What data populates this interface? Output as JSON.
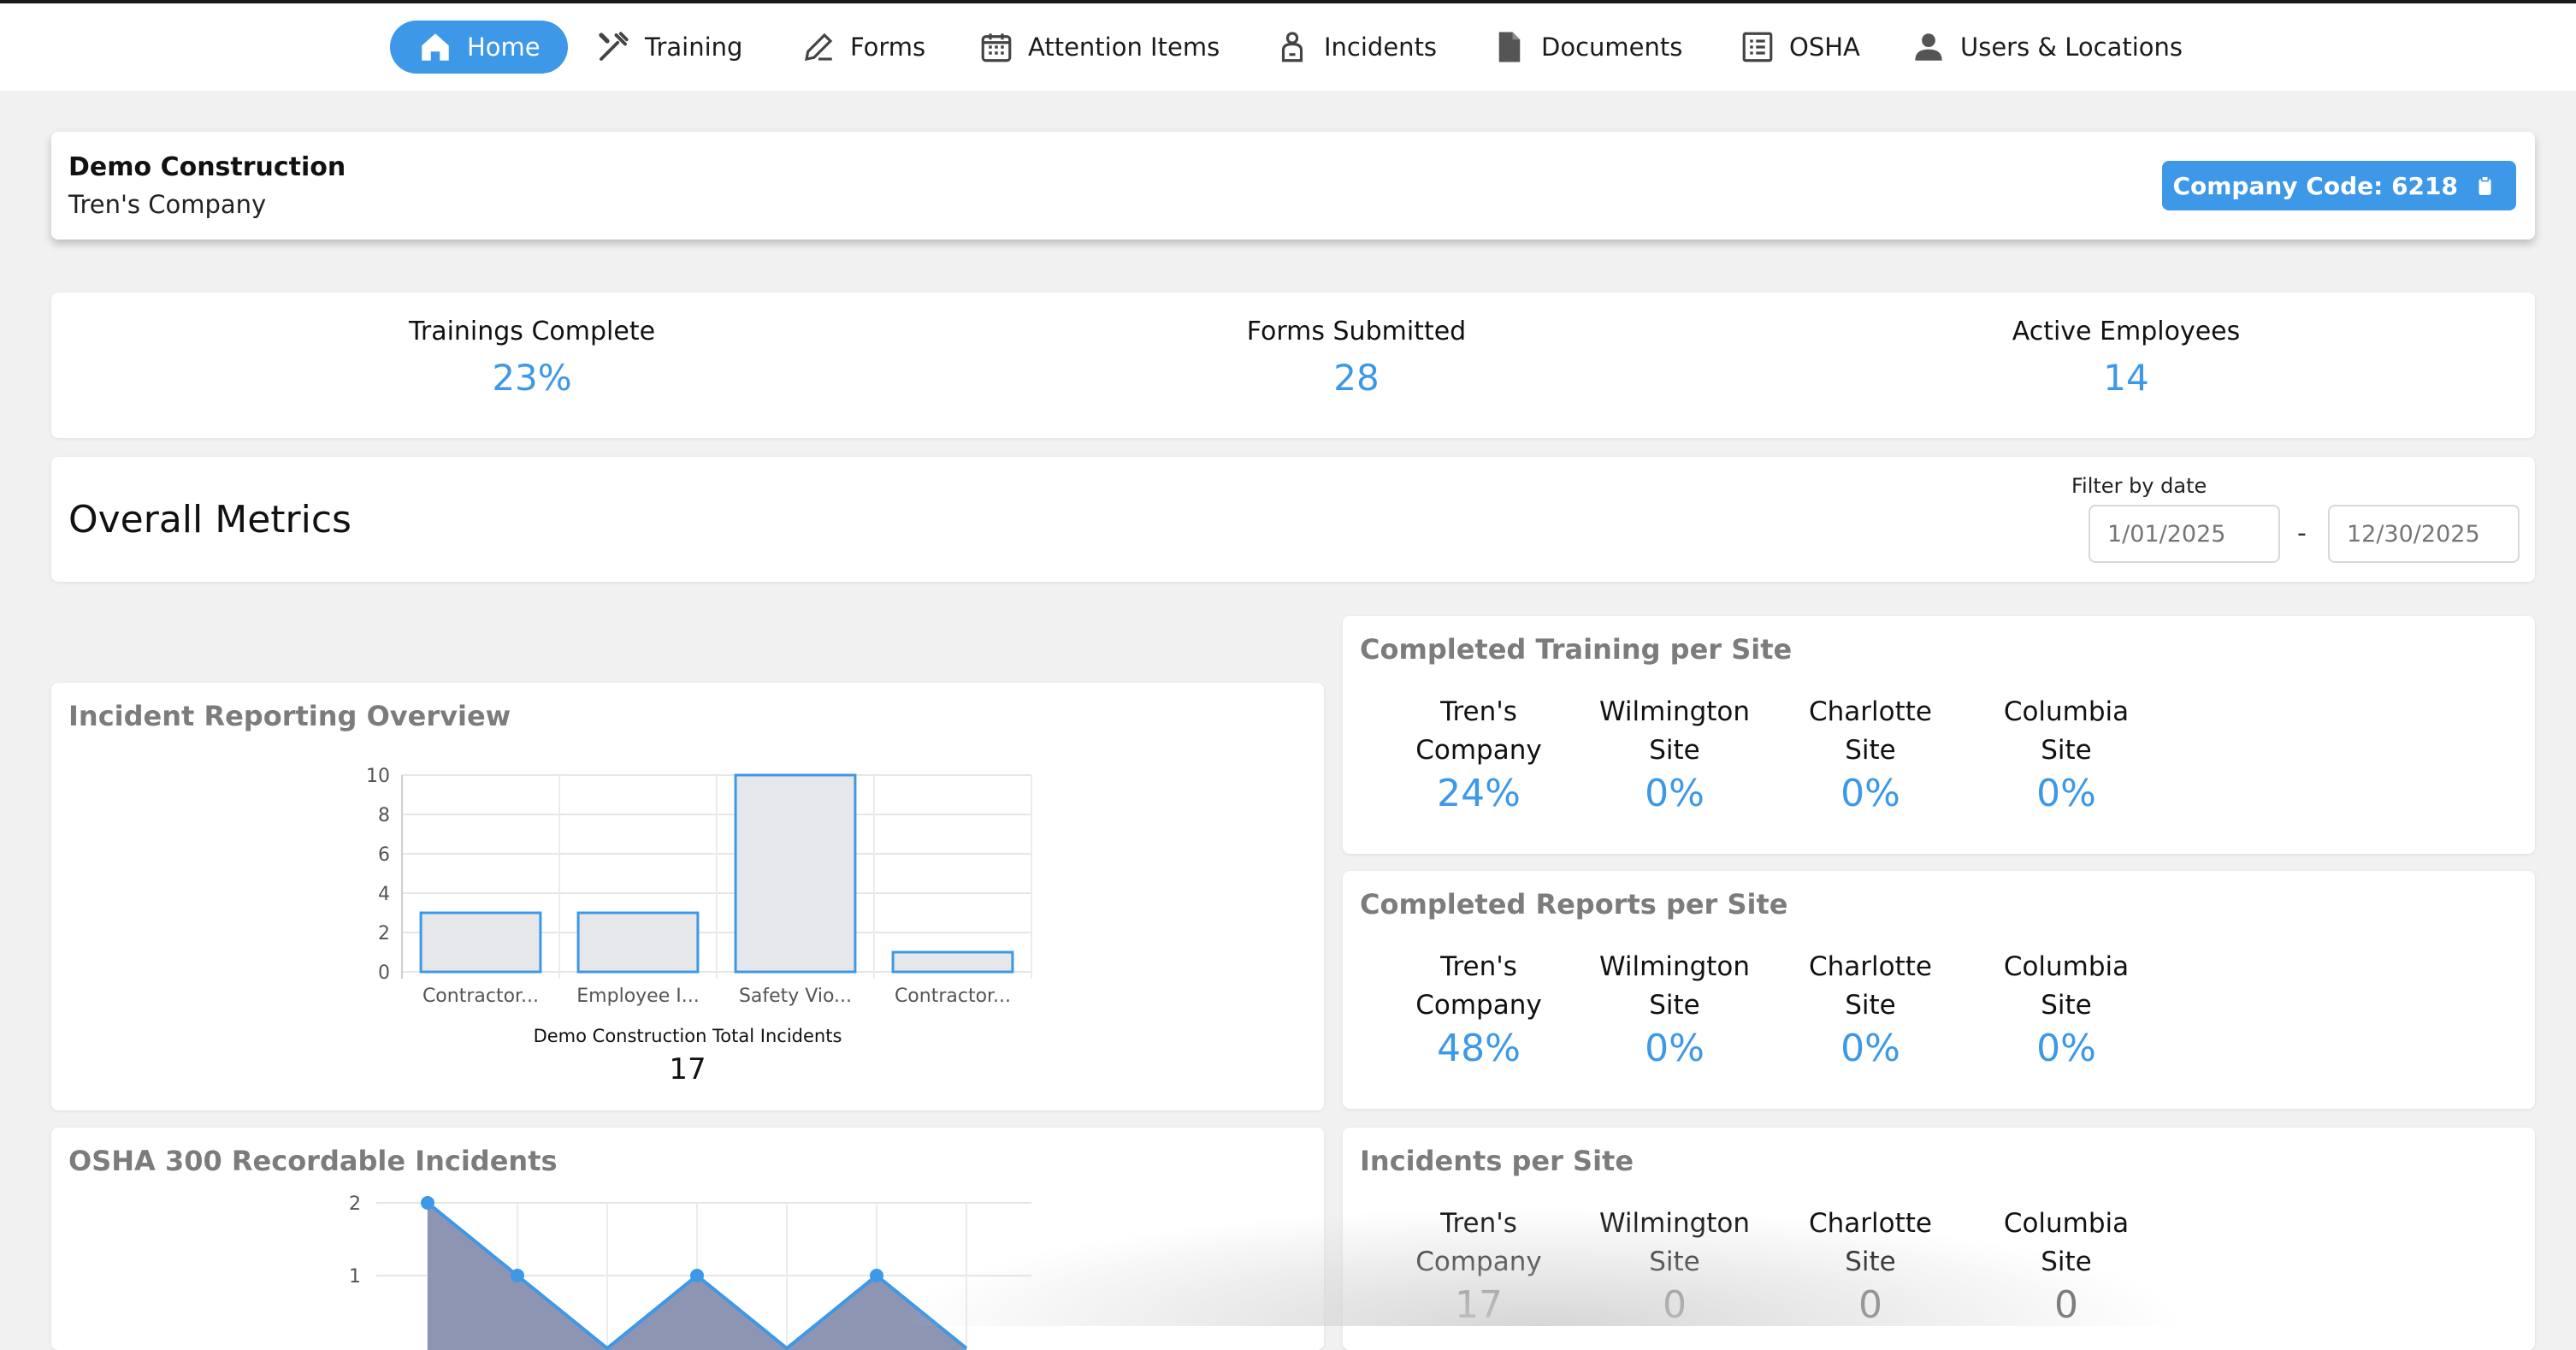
{
  "nav": {
    "items": [
      {
        "label": "Home",
        "icon": "home-icon"
      },
      {
        "label": "Training",
        "icon": "tools-icon"
      },
      {
        "label": "Forms",
        "icon": "pencil-icon"
      },
      {
        "label": "Attention Items",
        "icon": "calendar-icon"
      },
      {
        "label": "Incidents",
        "icon": "person-injury-icon"
      },
      {
        "label": "Documents",
        "icon": "document-icon"
      },
      {
        "label": "OSHA",
        "icon": "list-icon"
      },
      {
        "label": "Users & Locations",
        "icon": "user-icon"
      }
    ],
    "active": "Home"
  },
  "company": {
    "name": "Demo Construction",
    "sub": "Tren's Company",
    "code_label": "Company Code: 6218"
  },
  "stats": [
    {
      "label": "Trainings Complete",
      "value": "23%"
    },
    {
      "label": "Forms Submitted",
      "value": "28"
    },
    {
      "label": "Active Employees",
      "value": "14"
    }
  ],
  "metrics": {
    "title": "Overall Metrics",
    "filter_label": "Filter by date",
    "start_placeholder": "1/01/2025",
    "end_placeholder": "12/30/2025",
    "separator": "-"
  },
  "incident_card": {
    "title": "Incident Reporting Overview",
    "total_label": "Demo Construction Total Incidents",
    "total_value": "17"
  },
  "osha_card": {
    "title": "OSHA 300 Recordable Incidents"
  },
  "training_card": {
    "title": "Completed Training per Site",
    "sites": [
      {
        "line1": "Tren's",
        "line2": "Company",
        "value": "24%"
      },
      {
        "line1": "Wilmington",
        "line2": "Site",
        "value": "0%"
      },
      {
        "line1": "Charlotte",
        "line2": "Site",
        "value": "0%"
      },
      {
        "line1": "Columbia",
        "line2": "Site",
        "value": "0%"
      }
    ]
  },
  "reports_card": {
    "title": "Completed Reports per Site",
    "sites": [
      {
        "line1": "Tren's",
        "line2": "Company",
        "value": "48%"
      },
      {
        "line1": "Wilmington",
        "line2": "Site",
        "value": "0%"
      },
      {
        "line1": "Charlotte",
        "line2": "Site",
        "value": "0%"
      },
      {
        "line1": "Columbia",
        "line2": "Site",
        "value": "0%"
      }
    ]
  },
  "incidents_site_card": {
    "title": "Incidents per Site",
    "sites": [
      {
        "line1": "Tren's",
        "line2": "Company",
        "value": "17"
      },
      {
        "line1": "Wilmington",
        "line2": "Site",
        "value": "0"
      },
      {
        "line1": "Charlotte",
        "line2": "Site",
        "value": "0"
      },
      {
        "line1": "Columbia",
        "line2": "Site",
        "value": "0"
      }
    ]
  },
  "colors": {
    "accent": "#3d98e8",
    "bar_fill": "#e6e7eb",
    "area_fill": "#8d95b3"
  },
  "chart_data": [
    {
      "type": "bar",
      "categories": [
        "Contractor...",
        "Employee I...",
        "Safety Vio...",
        "Contractor..."
      ],
      "values": [
        3,
        3,
        10,
        1
      ],
      "yticks": [
        "0",
        "2",
        "4",
        "6",
        "8",
        "10"
      ],
      "ylim": [
        0,
        10
      ],
      "grid": true
    },
    {
      "type": "area",
      "values": [
        2,
        1,
        0,
        1,
        0,
        1,
        0
      ],
      "visible_points": [
        2,
        1,
        1,
        1
      ],
      "yticks": [
        "1",
        "2"
      ],
      "grid": true
    }
  ]
}
